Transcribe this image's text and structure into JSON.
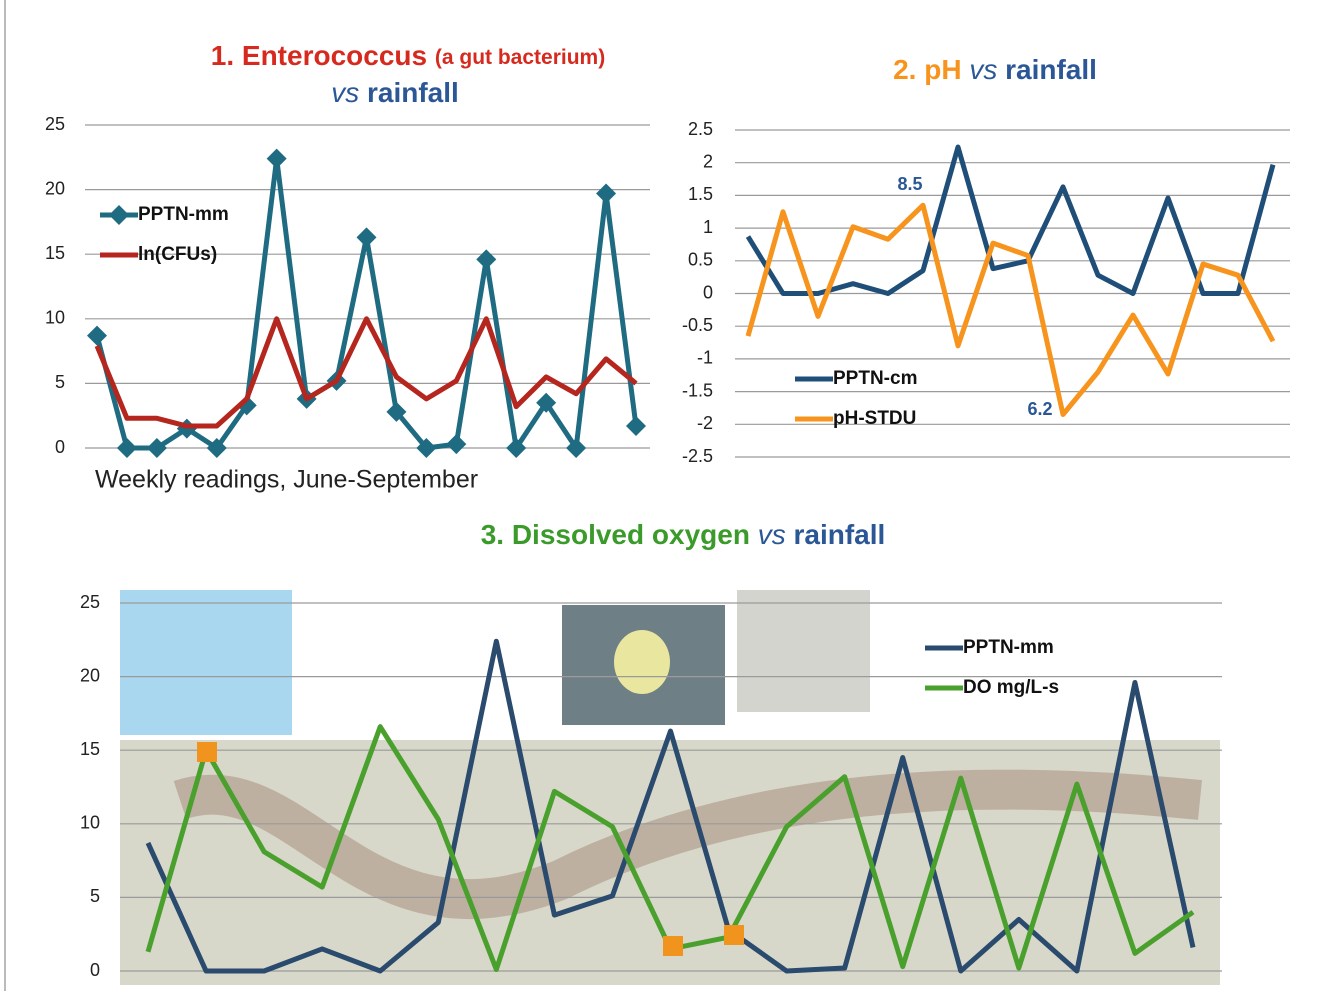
{
  "chart_data": [
    {
      "type": "line",
      "title": [
        "1. Enterococcus",
        "(a gut bacterium)",
        "vs",
        "rainfall"
      ],
      "xlabel": "Weekly readings, June-September",
      "series": [
        {
          "name": "PPTN-mm",
          "color": "#1f6b82",
          "marker": "diamond",
          "values": [
            8.7,
            0,
            0,
            1.5,
            0,
            3.3,
            22.4,
            3.8,
            5.2,
            16.3,
            2.8,
            0,
            0.3,
            14.6,
            0,
            3.5,
            0,
            19.7,
            1.7
          ]
        },
        {
          "name": "ln(CFUs)",
          "color": "#b5261e",
          "values": [
            7.9,
            2.3,
            2.3,
            1.7,
            1.7,
            3.8,
            10,
            3.8,
            5.2,
            10,
            5.5,
            3.8,
            5.2,
            10,
            3.2,
            5.5,
            4.2,
            6.9,
            5
          ]
        }
      ],
      "ylim": [
        0,
        25
      ],
      "yticks": [
        0,
        5,
        10,
        15,
        20,
        25
      ],
      "grid": true,
      "legend": "upper left"
    },
    {
      "type": "line",
      "title": [
        "2. pH",
        "vs",
        "rainfall"
      ],
      "series": [
        {
          "name": "PPTN-cm",
          "color": "#1f4e79",
          "values": [
            0.87,
            0,
            0,
            0.15,
            0,
            0.35,
            2.24,
            0.38,
            0.5,
            1.63,
            0.28,
            0,
            1.46,
            0,
            0,
            1.97
          ]
        },
        {
          "name": "pH-STDU",
          "color": "#f7941d",
          "values": [
            -0.65,
            1.25,
            -0.35,
            1.02,
            0.83,
            1.35,
            -0.8,
            0.77,
            0.58,
            -1.85,
            -1.2,
            -0.33,
            -1.23,
            0.45,
            0.28,
            -0.73
          ]
        }
      ],
      "annotations": [
        "8.5",
        "6.2"
      ],
      "ylim": [
        -2.5,
        2.5
      ],
      "yticks": [
        2.5,
        2,
        1.5,
        1,
        0.5,
        0,
        -0.5,
        -1,
        -1.5,
        -2,
        -2.5
      ],
      "grid": true,
      "legend": "lower left"
    },
    {
      "type": "line",
      "title": [
        "3. Dissolved oxygen",
        "vs",
        "rainfall"
      ],
      "series": [
        {
          "name": "PPTN-mm",
          "color": "#2a4a6e",
          "values": [
            8.7,
            0,
            0,
            1.5,
            0,
            3.3,
            22.4,
            3.8,
            5.1,
            16.3,
            2.8,
            0,
            0.2,
            14.5,
            0,
            3.5,
            0,
            19.6,
            1.6
          ]
        },
        {
          "name": "DO mg/L-s",
          "color": "#4aa02c",
          "values": [
            1.3,
            15,
            8.1,
            5.7,
            16.6,
            10.3,
            0.1,
            12.2,
            9.8,
            1.5,
            2.3,
            9.8,
            13.2,
            0.3,
            13.1,
            0.2,
            12.7,
            1.2,
            4
          ]
        }
      ],
      "ylim": [
        0,
        25
      ],
      "yticks": [
        0,
        5,
        10,
        15,
        20,
        25
      ],
      "grid": true,
      "legend": "upper right"
    }
  ]
}
